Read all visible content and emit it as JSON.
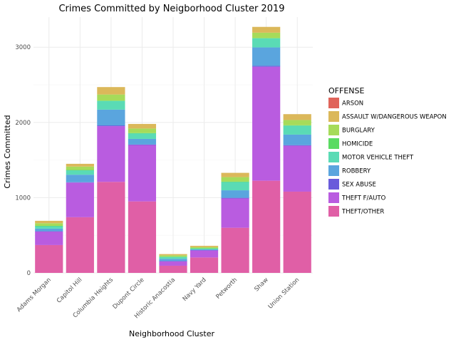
{
  "chart_data": {
    "type": "bar",
    "stacked": true,
    "title": "Crimes Committed by Neigborhood Cluster 2019",
    "xlabel": "Neighborhood Cluster",
    "ylabel": "Crimes Committed",
    "ylim": [
      0,
      3400
    ],
    "yticks": [
      0,
      1000,
      2000,
      3000
    ],
    "grid": true,
    "legend_title": "OFFENSE",
    "legend_position": "right",
    "categories": [
      "Adams Morgan",
      "Capitol Hill",
      "Columbia Heights",
      "Dupont Circle",
      "Historic Anacostia",
      "Navy Yard",
      "Petworth",
      "Shaw",
      "Union Station"
    ],
    "series": [
      {
        "name": "THEFT/OTHER",
        "color": "#e05fa6",
        "values": [
          370,
          740,
          1210,
          950,
          95,
          205,
          600,
          1225,
          1080
        ]
      },
      {
        "name": "THEFT F/AUTO",
        "color": "#b95ce0",
        "values": [
          180,
          460,
          740,
          750,
          60,
          95,
          390,
          1515,
          610
        ]
      },
      {
        "name": "SEX ABUSE",
        "color": "#6a5bdb",
        "values": [
          3,
          5,
          10,
          6,
          2,
          2,
          8,
          12,
          8
        ]
      },
      {
        "name": "ROBBERY",
        "color": "#5aa5de",
        "values": [
          35,
          100,
          210,
          75,
          30,
          10,
          100,
          245,
          140
        ]
      },
      {
        "name": "MOTOR VEHICLE THEFT",
        "color": "#5adbb5",
        "values": [
          35,
          60,
          115,
          75,
          25,
          15,
          110,
          120,
          120
        ]
      },
      {
        "name": "HOMICIDE",
        "color": "#5adb62",
        "values": [
          2,
          3,
          6,
          3,
          4,
          1,
          5,
          6,
          4
        ]
      },
      {
        "name": "BURGLARY",
        "color": "#a6db5a",
        "values": [
          35,
          45,
          80,
          60,
          18,
          15,
          60,
          70,
          70
        ]
      },
      {
        "name": "ASSAULT W/DANGEROUS WEAPON",
        "color": "#dbb85a",
        "values": [
          32,
          37,
          99,
          61,
          16,
          17,
          57,
          77,
          78
        ]
      },
      {
        "name": "ARSON",
        "color": "#e0645a",
        "values": [
          0,
          0,
          0,
          0,
          0,
          0,
          0,
          0,
          0
        ]
      }
    ],
    "legend_order": [
      "ARSON",
      "ASSAULT W/DANGEROUS WEAPON",
      "BURGLARY",
      "HOMICIDE",
      "MOTOR VEHICLE THEFT",
      "ROBBERY",
      "SEX ABUSE",
      "THEFT F/AUTO",
      "THEFT/OTHER"
    ]
  }
}
